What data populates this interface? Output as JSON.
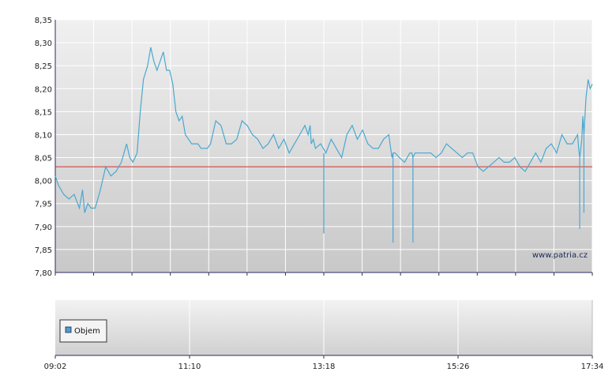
{
  "watermark": "www.patria.cz",
  "legend": {
    "label": "Objem"
  },
  "colors": {
    "series": "#4aa8d0",
    "reference": "#d03030",
    "grid": "#ffffff",
    "plot_top": "#f0f0f0",
    "plot_bottom": "#c8c8c8",
    "axis": "#2a2a6a",
    "legend_swatch": "#4aa0d0"
  },
  "chart_data": [
    {
      "type": "line",
      "title": "",
      "xlabel": "",
      "ylabel": "",
      "x_tick_labels": [
        "09:02",
        "11:10",
        "13:18",
        "15:26",
        "17:34"
      ],
      "y_tick_labels": [
        "8,35",
        "8,30",
        "8,25",
        "8,20",
        "8,15",
        "8,10",
        "8,05",
        "8,00",
        "7,95",
        "7,90",
        "7,85",
        "7,80"
      ],
      "ylim": [
        7.8,
        8.35
      ],
      "xlim": [
        "09:02",
        "17:34"
      ],
      "grid": true,
      "reference_line": {
        "value": 8.03
      },
      "series": [
        {
          "x": [
            "09:02",
            "09:05",
            "09:10",
            "09:15",
            "09:20",
            "09:25",
            "09:28",
            "09:30",
            "09:33",
            "09:36",
            "09:40",
            "09:45",
            "09:50",
            "09:55",
            "10:00",
            "10:05",
            "10:10",
            "10:13",
            "10:16",
            "10:20",
            "10:23",
            "10:26",
            "10:30",
            "10:33",
            "10:36",
            "10:39",
            "10:42",
            "10:45",
            "10:48",
            "10:51",
            "10:54",
            "10:57",
            "11:00",
            "11:03",
            "11:06",
            "11:09",
            "11:12",
            "11:15",
            "11:18",
            "11:21",
            "11:24",
            "11:27",
            "11:30",
            "11:35",
            "11:40",
            "11:45",
            "11:50",
            "11:55",
            "12:00",
            "12:05",
            "12:10",
            "12:15",
            "12:20",
            "12:25",
            "12:30",
            "12:35",
            "12:40",
            "12:45",
            "12:50",
            "12:55",
            "13:00",
            "13:03",
            "13:05",
            "13:06",
            "13:08",
            "13:10",
            "13:15",
            "13:20",
            "13:25",
            "13:30",
            "13:35",
            "13:40",
            "13:45",
            "13:50",
            "13:55",
            "14:00",
            "14:05",
            "14:10",
            "14:15",
            "14:20",
            "14:23",
            "14:24",
            "14:26",
            "14:30",
            "14:35",
            "14:40",
            "14:42",
            "14:43",
            "14:45",
            "14:50",
            "14:55",
            "15:00",
            "15:05",
            "15:10",
            "15:15",
            "15:20",
            "15:25",
            "15:30",
            "15:35",
            "15:40",
            "15:45",
            "15:50",
            "15:55",
            "16:00",
            "16:05",
            "16:10",
            "16:15",
            "16:20",
            "16:25",
            "16:30",
            "16:35",
            "16:40",
            "16:45",
            "16:50",
            "16:55",
            "17:00",
            "17:05",
            "17:10",
            "17:15",
            "17:20",
            "17:21",
            "17:22",
            "17:24",
            "17:25",
            "17:26",
            "17:28",
            "17:30",
            "17:32",
            "17:34"
          ],
          "values": [
            8.01,
            7.99,
            7.97,
            7.96,
            7.97,
            7.94,
            7.98,
            7.93,
            7.95,
            7.94,
            7.94,
            7.98,
            8.03,
            8.01,
            8.02,
            8.04,
            8.08,
            8.05,
            8.04,
            8.06,
            8.15,
            8.22,
            8.25,
            8.29,
            8.26,
            8.24,
            8.26,
            8.28,
            8.24,
            8.24,
            8.21,
            8.15,
            8.13,
            8.14,
            8.1,
            8.09,
            8.08,
            8.08,
            8.08,
            8.07,
            8.07,
            8.07,
            8.08,
            8.13,
            8.12,
            8.08,
            8.08,
            8.09,
            8.13,
            8.12,
            8.1,
            8.09,
            8.07,
            8.08,
            8.1,
            8.07,
            8.09,
            8.06,
            8.08,
            8.1,
            8.12,
            8.1,
            8.12,
            8.08,
            8.09,
            8.07,
            8.08,
            8.06,
            8.09,
            8.07,
            8.05,
            8.1,
            8.12,
            8.09,
            8.11,
            8.08,
            8.07,
            8.07,
            8.09,
            8.1,
            8.05,
            8.06,
            8.06,
            8.05,
            8.04,
            8.06,
            8.06,
            8.05,
            8.06,
            8.06,
            8.06,
            8.06,
            8.05,
            8.06,
            8.08,
            8.07,
            8.06,
            8.05,
            8.06,
            8.06,
            8.03,
            8.02,
            8.03,
            8.04,
            8.05,
            8.04,
            8.04,
            8.05,
            8.03,
            8.02,
            8.04,
            8.06,
            8.04,
            8.07,
            8.08,
            8.06,
            8.1,
            8.08,
            8.08,
            8.1,
            8.07,
            8.05,
            8.09,
            8.14,
            8.1,
            8.18,
            8.22,
            8.2,
            8.21
          ]
        }
      ],
      "spikes": [
        {
          "x": "13:18",
          "low": 7.885
        },
        {
          "x": "14:24",
          "low": 7.865
        },
        {
          "x": "14:43",
          "low": 7.865
        },
        {
          "x": "17:22",
          "low": 7.895
        },
        {
          "x": "17:26",
          "low": 7.93
        }
      ]
    },
    {
      "type": "bar",
      "series": [
        {
          "name": "Objem",
          "values": []
        }
      ],
      "xlim": [
        "09:02",
        "17:34"
      ],
      "grid": true,
      "legend_placement": "bottom-left"
    }
  ]
}
